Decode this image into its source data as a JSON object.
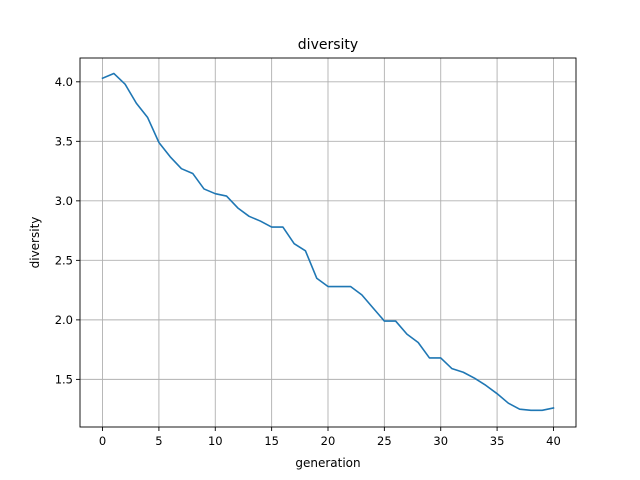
{
  "chart_data": {
    "type": "line",
    "title": "diversity",
    "xlabel": "generation",
    "ylabel": "diversity",
    "xlim": [
      -2,
      42
    ],
    "ylim": [
      1.1,
      4.2
    ],
    "xticks": [
      0,
      5,
      10,
      15,
      20,
      25,
      30,
      35,
      40
    ],
    "xtick_labels": [
      "0",
      "5",
      "10",
      "15",
      "20",
      "25",
      "30",
      "35",
      "40"
    ],
    "yticks": [
      1.5,
      2.0,
      2.5,
      3.0,
      3.5,
      4.0
    ],
    "ytick_labels": [
      "1.5",
      "2.0",
      "2.5",
      "3.0",
      "3.5",
      "4.0"
    ],
    "grid": true,
    "series_color": "#1f77b4",
    "series": [
      {
        "x": [
          0,
          1,
          2,
          3,
          4,
          5,
          6,
          7,
          8,
          9,
          10,
          11,
          12,
          13,
          14,
          15,
          16,
          17,
          18,
          19,
          20,
          21,
          22,
          23,
          24,
          25,
          26,
          27,
          28,
          29,
          30,
          31,
          32,
          33,
          34,
          35,
          36,
          37,
          38,
          39,
          40
        ],
        "values": [
          4.03,
          4.07,
          3.98,
          3.82,
          3.7,
          3.49,
          3.37,
          3.27,
          3.23,
          3.1,
          3.06,
          3.04,
          2.94,
          2.87,
          2.83,
          2.78,
          2.78,
          2.64,
          2.58,
          2.35,
          2.28,
          2.28,
          2.28,
          2.21,
          2.1,
          1.99,
          1.99,
          1.88,
          1.81,
          1.68,
          1.68,
          1.59,
          1.56,
          1.51,
          1.45,
          1.38,
          1.3,
          1.25,
          1.24,
          1.24,
          1.26
        ]
      }
    ]
  }
}
